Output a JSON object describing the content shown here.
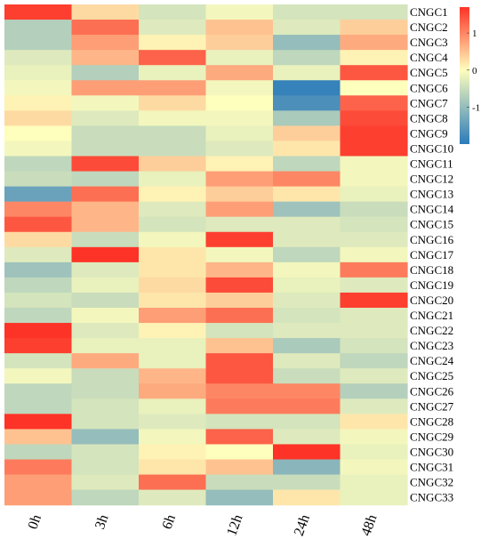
{
  "chart_data": {
    "type": "heatmap",
    "title": "",
    "xlabel": "",
    "ylabel": "",
    "columns": [
      "0h",
      "3h",
      "6h",
      "12h",
      "24h",
      "48h"
    ],
    "rows": [
      "CNGC1",
      "CNGC2",
      "CNGC3",
      "CNGC4",
      "CNGC5",
      "CNGC6",
      "CNGC7",
      "CNGC8",
      "CNGC9",
      "CNGC10",
      "CNGC11",
      "CNGC12",
      "CNGC13",
      "CNGC14",
      "CNGC15",
      "CNGC16",
      "CNGC17",
      "CNGC18",
      "CNGC19",
      "CNGC20",
      "CNGC21",
      "CNGC22",
      "CNGC23",
      "CNGC24",
      "CNGC25",
      "CNGC26",
      "CNGC27",
      "CNGC28",
      "CNGC29",
      "CNGC30",
      "CNGC31",
      "CNGC32",
      "CNGC33"
    ],
    "values": [
      [
        1.6,
        0.3,
        -0.4,
        -0.1,
        -0.4,
        -0.4
      ],
      [
        -0.7,
        1.2,
        -0.3,
        0.5,
        -0.3,
        0.4
      ],
      [
        -0.7,
        0.8,
        0.1,
        0.4,
        -1.0,
        0.7
      ],
      [
        -0.3,
        0.6,
        1.3,
        -0.2,
        -0.6,
        0.1
      ],
      [
        -0.2,
        -0.7,
        -0.2,
        0.7,
        -0.2,
        1.4
      ],
      [
        -0.1,
        0.8,
        0.8,
        -0.1,
        -1.9,
        0.0
      ],
      [
        0.1,
        -0.1,
        0.3,
        0.0,
        -1.7,
        1.3
      ],
      [
        0.3,
        -0.3,
        -0.1,
        -0.1,
        -0.8,
        1.5
      ],
      [
        0.0,
        -0.5,
        -0.5,
        -0.2,
        0.4,
        1.6
      ],
      [
        -0.1,
        -0.5,
        -0.5,
        -0.3,
        0.2,
        1.6
      ],
      [
        -0.6,
        1.5,
        0.4,
        0.1,
        -0.6,
        -0.1
      ],
      [
        -0.5,
        -0.6,
        -0.2,
        0.8,
        1.0,
        -0.1
      ],
      [
        -1.4,
        1.2,
        0.1,
        0.4,
        0.2,
        -0.2
      ],
      [
        1.0,
        0.6,
        -0.3,
        0.8,
        -0.9,
        -0.5
      ],
      [
        1.4,
        0.6,
        -0.4,
        -0.3,
        -0.3,
        -0.4
      ],
      [
        0.3,
        -0.5,
        -0.1,
        1.6,
        -0.3,
        -0.3
      ],
      [
        -0.3,
        1.7,
        0.2,
        -0.1,
        -0.6,
        -0.1
      ],
      [
        -0.9,
        -0.3,
        0.2,
        0.6,
        -0.1,
        1.1
      ],
      [
        -0.6,
        -0.2,
        0.3,
        1.5,
        -0.2,
        -0.3
      ],
      [
        -0.4,
        -0.5,
        0.2,
        0.4,
        -0.3,
        1.6
      ],
      [
        -0.6,
        -0.1,
        0.8,
        1.2,
        -0.4,
        -0.3
      ],
      [
        1.7,
        -0.3,
        0.1,
        -0.4,
        -0.3,
        -0.3
      ],
      [
        1.6,
        -0.2,
        -0.2,
        0.5,
        -0.8,
        -0.4
      ],
      [
        -0.4,
        0.7,
        -0.2,
        1.4,
        -0.3,
        -0.6
      ],
      [
        -0.1,
        -0.5,
        0.6,
        1.4,
        -0.5,
        -0.3
      ],
      [
        -0.6,
        -0.5,
        0.7,
        1.0,
        1.0,
        -0.7
      ],
      [
        -0.6,
        -0.4,
        -0.2,
        1.1,
        1.1,
        -0.3
      ],
      [
        1.7,
        -0.4,
        -0.3,
        -0.4,
        -0.4,
        0.2
      ],
      [
        0.5,
        -1.0,
        -0.1,
        1.3,
        -0.3,
        -0.1
      ],
      [
        -0.6,
        -0.4,
        0.1,
        0.0,
        1.7,
        -0.2
      ],
      [
        1.1,
        -0.4,
        0.2,
        0.5,
        -1.1,
        -0.1
      ],
      [
        0.8,
        -0.3,
        1.2,
        -0.5,
        -0.5,
        -0.2
      ],
      [
        0.8,
        -0.6,
        -0.3,
        -1.0,
        0.2,
        -0.2
      ]
    ],
    "color_scale": {
      "min": -2,
      "max": 1.7,
      "low_color": "#2b7bba",
      "mid_color": "#fefebd",
      "high_color": "#fd3327"
    },
    "colorbar": {
      "ticks": [
        {
          "value": 1,
          "label": "1"
        },
        {
          "value": 0,
          "label": "0"
        },
        {
          "value": -1,
          "label": "-1"
        }
      ]
    }
  }
}
